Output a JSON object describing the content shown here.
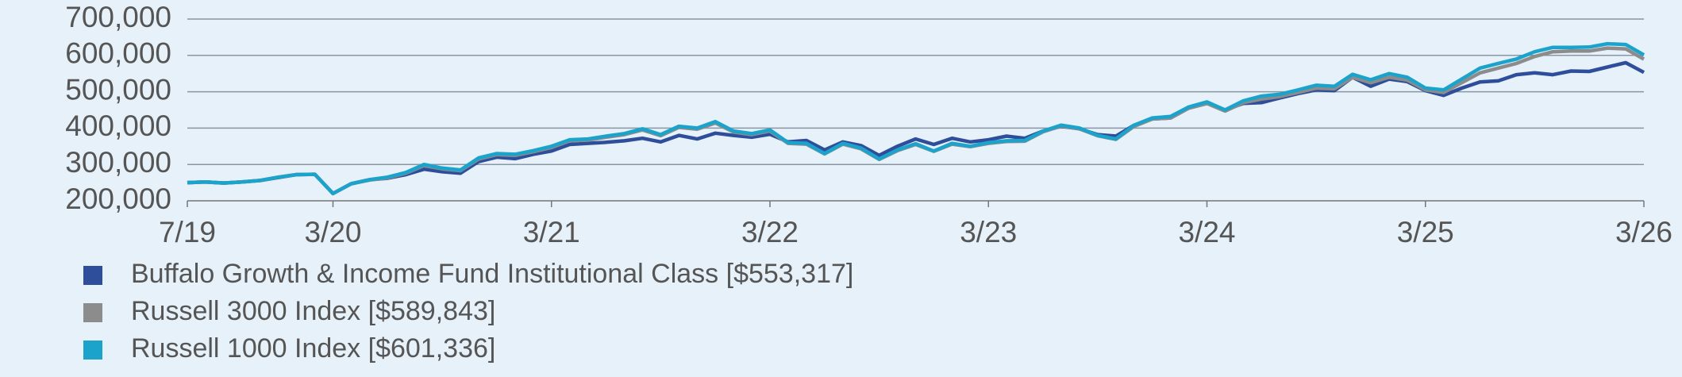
{
  "chart_data": {
    "type": "line",
    "categories": [
      "7/19",
      null,
      null,
      null,
      null,
      null,
      null,
      null,
      "3/20",
      null,
      null,
      null,
      null,
      null,
      null,
      null,
      null,
      null,
      null,
      null,
      "3/21",
      null,
      null,
      null,
      null,
      null,
      null,
      null,
      null,
      null,
      null,
      null,
      "3/22",
      null,
      null,
      null,
      null,
      null,
      null,
      null,
      null,
      null,
      null,
      null,
      "3/23",
      null,
      null,
      null,
      null,
      null,
      null,
      null,
      null,
      null,
      null,
      null,
      "3/24",
      null,
      null,
      null,
      null,
      null,
      null,
      null,
      null,
      null,
      null,
      null,
      "3/25",
      null,
      null,
      null,
      null,
      null,
      null,
      null,
      null,
      null,
      null,
      null,
      "3/26"
    ],
    "series": [
      {
        "name": "Buffalo Growth & Income Fund Institutional Class [$553,317]",
        "color": "#2e4d9b",
        "values": [
          250000,
          252000,
          249000,
          252000,
          256000,
          264000,
          272000,
          273000,
          220000,
          247000,
          258000,
          262000,
          272000,
          287000,
          280000,
          276000,
          308000,
          320000,
          316000,
          328000,
          337000,
          355000,
          358000,
          361000,
          365000,
          372000,
          362000,
          380000,
          370000,
          386000,
          380000,
          375000,
          383000,
          362000,
          366000,
          340000,
          362000,
          352000,
          325000,
          350000,
          370000,
          355000,
          372000,
          362000,
          368000,
          378000,
          372000,
          392000,
          405000,
          398000,
          382000,
          378000,
          408000,
          425000,
          428000,
          455000,
          468000,
          450000,
          468000,
          470000,
          483000,
          495000,
          505000,
          503000,
          540000,
          515000,
          535000,
          528000,
          503000,
          490000,
          510000,
          527000,
          530000,
          547000,
          552000,
          547000,
          557000,
          556000,
          568000,
          580000,
          553317
        ]
      },
      {
        "name": "Russell 3000 Index [$589,843]",
        "color": "#8c8c8c",
        "values": [
          250000,
          252000,
          249000,
          252000,
          256000,
          265000,
          272000,
          273000,
          220000,
          247000,
          257000,
          263000,
          276000,
          297000,
          288000,
          283000,
          315000,
          327000,
          325000,
          335000,
          347000,
          365000,
          367000,
          375000,
          382000,
          395000,
          379000,
          402000,
          397000,
          414000,
          389000,
          382000,
          392000,
          358000,
          356000,
          329000,
          356000,
          343000,
          314000,
          338000,
          355000,
          336000,
          356000,
          349000,
          358000,
          363000,
          364000,
          390000,
          406000,
          398000,
          379000,
          369000,
          405000,
          425000,
          428000,
          455000,
          468000,
          447000,
          470000,
          480000,
          487000,
          498000,
          510000,
          508000,
          540000,
          525000,
          540000,
          532000,
          505000,
          498000,
          525000,
          552000,
          565000,
          578000,
          597000,
          610000,
          612000,
          612000,
          620000,
          618000,
          589843
        ]
      },
      {
        "name": "Russell 1000 Index [$601,336]",
        "color": "#1ba3cc",
        "values": [
          250000,
          252000,
          249000,
          252000,
          256000,
          265000,
          272000,
          273000,
          220000,
          247000,
          258000,
          265000,
          278000,
          300000,
          290000,
          285000,
          318000,
          330000,
          328000,
          338000,
          350000,
          368000,
          370000,
          378000,
          385000,
          398000,
          382000,
          405000,
          400000,
          418000,
          392000,
          385000,
          395000,
          360000,
          358000,
          330000,
          358000,
          345000,
          315000,
          340000,
          357000,
          337000,
          358000,
          350000,
          360000,
          365000,
          366000,
          392000,
          408000,
          400000,
          380000,
          370000,
          408000,
          428000,
          432000,
          458000,
          472000,
          450000,
          475000,
          488000,
          493000,
          505000,
          518000,
          515000,
          548000,
          533000,
          550000,
          540000,
          510000,
          505000,
          535000,
          565000,
          578000,
          590000,
          610000,
          622000,
          622000,
          623000,
          632000,
          630000,
          601336
        ]
      }
    ],
    "ylim": [
      200000,
      700000
    ],
    "yticks": [
      {
        "value": 200000,
        "label": "200,000"
      },
      {
        "value": 300000,
        "label": "300,000"
      },
      {
        "value": 400000,
        "label": "400,000"
      },
      {
        "value": 500000,
        "label": "500,000"
      },
      {
        "value": 600000,
        "label": "600,000"
      },
      {
        "value": 700000,
        "label": "700,000"
      }
    ],
    "grid": true
  }
}
